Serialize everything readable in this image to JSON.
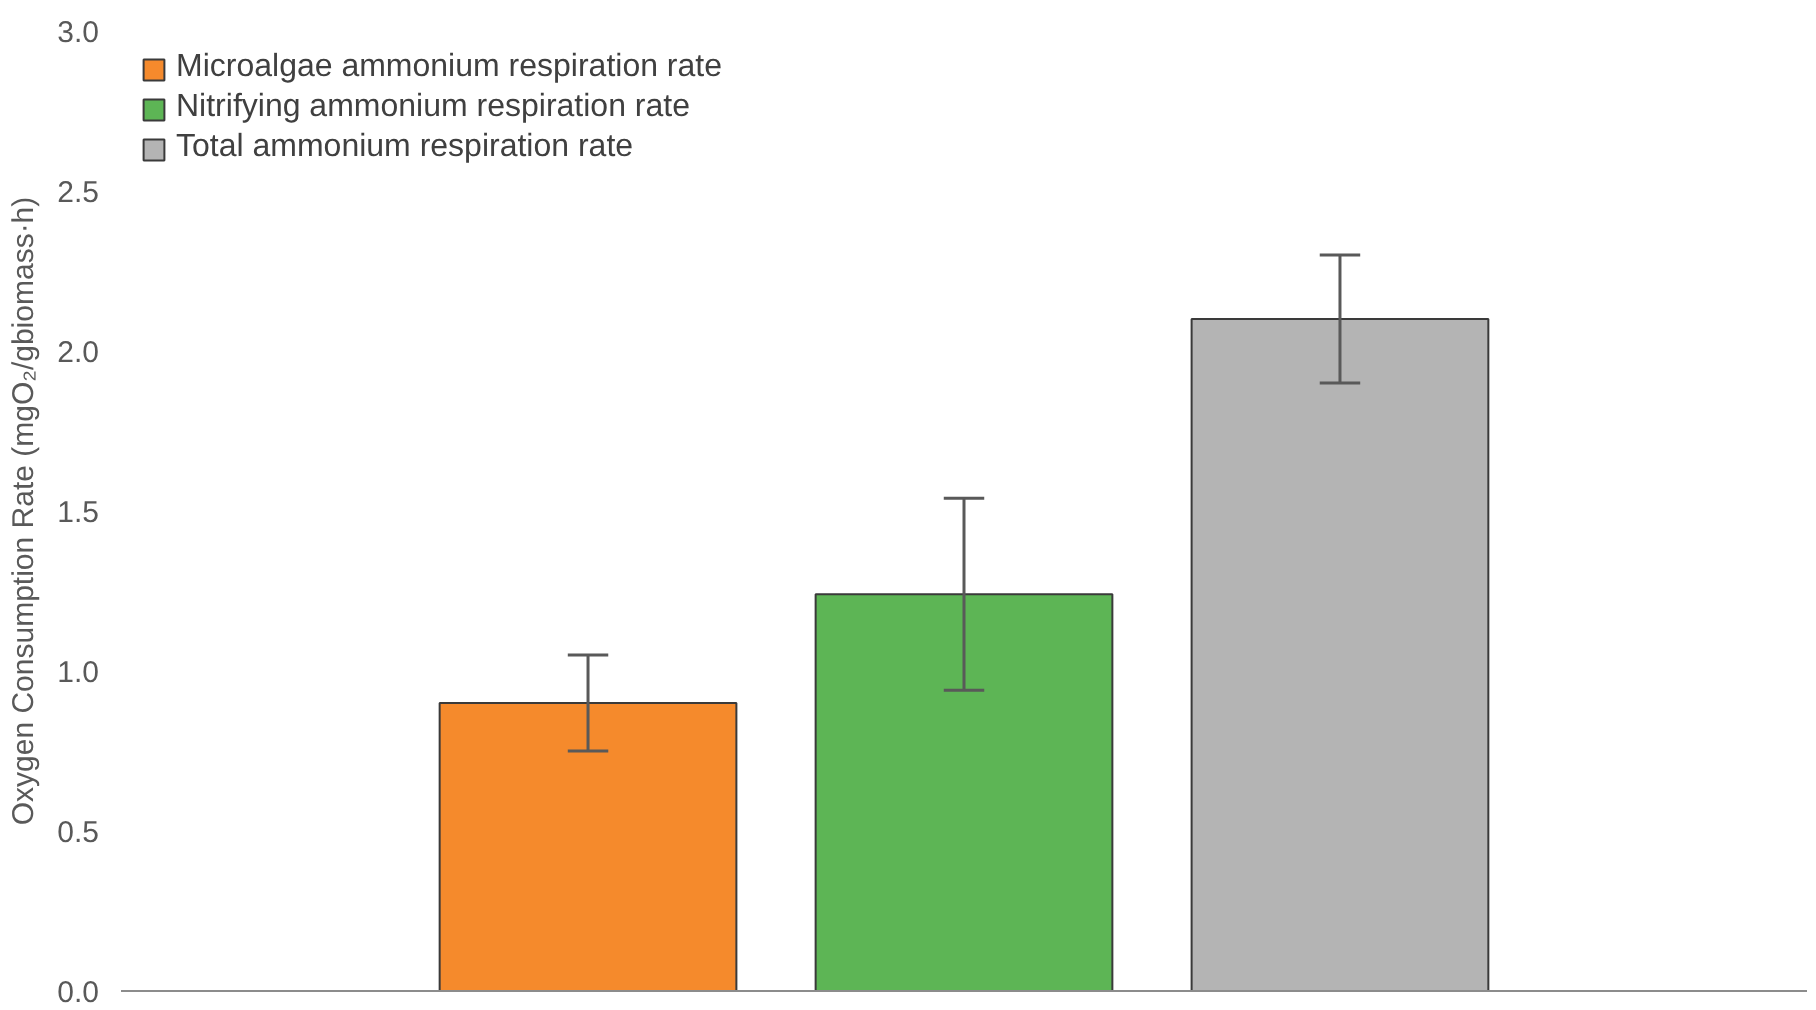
{
  "chart_data": {
    "type": "bar",
    "ylabel": "Oxygen Consumption Rate (mgO₂/gbiomass·h)",
    "categories": [
      null
    ],
    "series": [
      {
        "name": "Microalgae ammonium respiration rate",
        "color": "#f58a2c",
        "values": [
          0.9
        ],
        "errors": [
          0.15
        ]
      },
      {
        "name": "Nitrifying ammonium respiration rate",
        "color": "#5db555",
        "values": [
          1.24
        ],
        "errors": [
          0.3
        ]
      },
      {
        "name": "Total ammonium respiration rate",
        "color": "#b4b4b4",
        "values": [
          2.1
        ],
        "errors": [
          0.2
        ]
      }
    ],
    "ylim": [
      0,
      3
    ],
    "yticks": [
      {
        "value": 0,
        "label": "0.0"
      },
      0.5,
      {
        "value": 1,
        "label": "1.0"
      },
      1.5,
      {
        "value": 2,
        "label": "2.0"
      },
      2.5,
      {
        "value": 3,
        "label": "3.0"
      }
    ],
    "grid": false,
    "legend": "top left"
  }
}
